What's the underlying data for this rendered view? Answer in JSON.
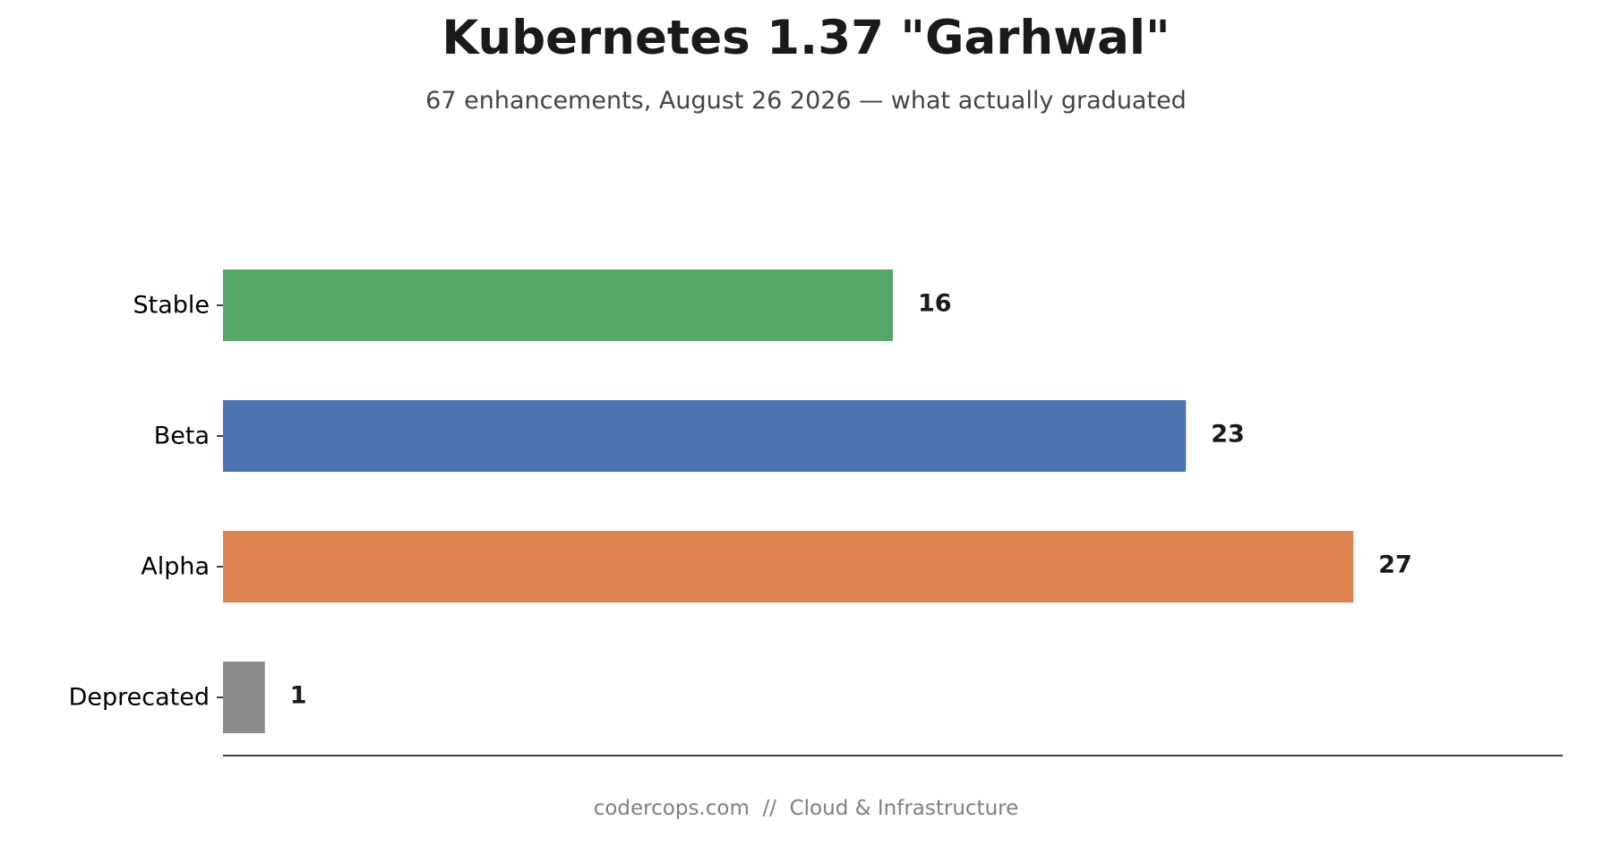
{
  "page": {
    "footer": "codercops.com  //  Cloud & Infrastructure"
  },
  "chart_data": {
    "type": "bar",
    "orientation": "horizontal",
    "title": "Kubernetes 1.37 \"Garhwal\"",
    "subtitle": "67 enhancements, August 26 2026 — what actually graduated",
    "xlabel": "",
    "ylabel": "",
    "categories": [
      "Stable",
      "Beta",
      "Alpha",
      "Deprecated"
    ],
    "values": [
      16,
      23,
      27,
      1
    ],
    "colors": [
      "#55a868",
      "#4c72b0",
      "#dd8452",
      "#8c8c8c"
    ],
    "xlim": [
      0,
      32
    ],
    "grid": false,
    "legend": "none",
    "data_labels": [
      "16",
      "23",
      "27",
      "1"
    ]
  }
}
